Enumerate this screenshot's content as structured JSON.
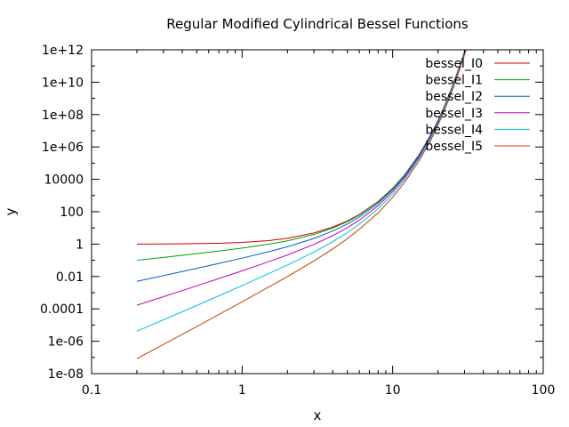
{
  "chart_data": {
    "type": "line",
    "title": "Regular Modified Cylindrical Bessel Functions",
    "xlabel": "x",
    "ylabel": "y",
    "x_scale": "log",
    "y_scale": "log",
    "xlim": [
      0.1,
      100
    ],
    "ylim": [
      1e-08,
      1000000000000.0
    ],
    "x_ticks": [
      {
        "value": 0.1,
        "label": "0.1"
      },
      {
        "value": 1,
        "label": "1"
      },
      {
        "value": 10,
        "label": "10"
      },
      {
        "value": 100,
        "label": "100"
      }
    ],
    "y_ticks": [
      {
        "value": 1e-08,
        "label": "1e-08"
      },
      {
        "value": 1e-06,
        "label": "1e-06"
      },
      {
        "value": 0.0001,
        "label": "0.0001"
      },
      {
        "value": 0.01,
        "label": "0.01"
      },
      {
        "value": 1,
        "label": "1"
      },
      {
        "value": 100,
        "label": "100"
      },
      {
        "value": 10000.0,
        "label": "10000"
      },
      {
        "value": 1000000.0,
        "label": "1e+06"
      },
      {
        "value": 100000000.0,
        "label": "1e+08"
      },
      {
        "value": 10000000000.0,
        "label": "1e+10"
      },
      {
        "value": 1000000000000.0,
        "label": "1e+12"
      }
    ],
    "grid": false,
    "legend_position": "top-right",
    "x": [
      0.2,
      0.3,
      0.5,
      0.7,
      1,
      1.5,
      2,
      3,
      4,
      5,
      6,
      8,
      10,
      12,
      15,
      18,
      20,
      22,
      25,
      28,
      30,
      32
    ],
    "series": [
      {
        "name": "bessel_I0",
        "color": "#cc0000",
        "values": [
          1.01,
          1.0226,
          1.0635,
          1.1263,
          1.2661,
          1.6467,
          2.2796,
          4.8808,
          11.302,
          27.24,
          67.234,
          427.56,
          2815.7,
          18949,
          339800,
          6200000.0,
          43550000.0,
          308000000.0,
          5910000000.0,
          115000000000.0,
          780000000000.0,
          5400000000000.0
        ]
      },
      {
        "name": "bessel_I1",
        "color": "#00a000",
        "values": [
          0.1005,
          0.15085,
          0.25789,
          0.37089,
          0.56516,
          0.98167,
          1.5906,
          3.9534,
          9.7595,
          24.336,
          61.342,
          399.87,
          2671.0,
          18141,
          328300,
          6000000.0,
          42450000.0,
          301000000.0,
          5800000000.0,
          113000000000.0,
          770000000000.0,
          5300000000000.0
        ]
      },
      {
        "name": "bessel_I2",
        "color": "#0060c0",
        "values": [
          0.0050167,
          0.011292,
          0.031906,
          0.063756,
          0.13575,
          0.33783,
          0.68895,
          2.2452,
          6.4222,
          17.506,
          46.787,
          327.6,
          2281.5,
          15925,
          296300,
          5480000.0,
          39310000.0,
          281000000.0,
          5460000000.0,
          107000000000.0,
          730000000000.0,
          5050000000000.0
        ]
      },
      {
        "name": "bessel_I3",
        "color": "#c000c0",
        "values": [
          0.00016708,
          0.00056438,
          0.0026451,
          0.0074212,
          0.022168,
          0.082077,
          0.21274,
          0.95975,
          3.3373,
          10.331,
          30.171,
          236.6,
          1758.4,
          12737,
          249100,
          4700000.0,
          34550000.0,
          249000000.0,
          4900000000.0,
          97000000000.0,
          660000000000.0,
          4600000000000.0
        ]
      },
      {
        "name": "bessel_I4",
        "color": "#00c0e0",
        "values": [
          4.1758e-06,
          2.1158e-05,
          0.00016233,
          0.00064352,
          0.0027371,
          0.015067,
          0.050729,
          0.32571,
          1.4163,
          5.1082,
          17.101,
          150.76,
          1226.5,
          9441.2,
          195000,
          3800000.0,
          28820000.0,
          210000000.0,
          4200000000.0,
          84000000000.0,
          580000000000.0,
          4100000000000.0
        ]
      },
      {
        "name": "bessel_I5",
        "color": "#c04000",
        "values": [
          8.35e-08,
          6.345e-07,
          8.0536e-06,
          4.4739e-05,
          0.00027146,
          0.0022341,
          0.0098256,
          0.091206,
          0.50472,
          2.1574,
          8.2248,
          84.4,
          777.19,
          6429.0,
          141500,
          2850000.0,
          22140000.0,
          165000000.0,
          3400000000.0,
          69000000000.0,
          480000000000.0,
          3500000000000.0
        ]
      }
    ]
  }
}
